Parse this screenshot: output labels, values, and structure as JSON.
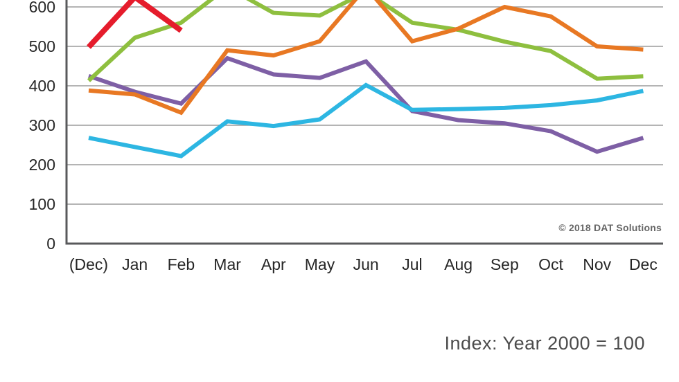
{
  "annotations": {
    "copyright": "© 2018 DAT Solutions",
    "index_note": "Index: Year 2000 = 100"
  },
  "chart_data": {
    "type": "line",
    "title": "",
    "xlabel": "",
    "ylabel": "",
    "categories": [
      "(Dec)",
      "Jan",
      "Feb",
      "Mar",
      "Apr",
      "May",
      "Jun",
      "Jul",
      "Aug",
      "Sep",
      "Oct",
      "Nov",
      "Dec"
    ],
    "yticks": [
      0,
      100,
      200,
      300,
      400,
      500,
      600
    ],
    "ylim": [
      0,
      620
    ],
    "grid": true,
    "legend": "none (cropped out of frame)",
    "top_cropped": true,
    "series": [
      {
        "name": "purple-line",
        "color": "#7e5fa5",
        "stroke_width": 6,
        "values": [
          425,
          385,
          355,
          470,
          429,
          420,
          462,
          336,
          313,
          305,
          285,
          233,
          268
        ]
      },
      {
        "name": "green-line",
        "color": "#8ebf3f",
        "stroke_width": 6,
        "values": [
          413,
          522,
          560,
          650,
          585,
          578,
          638,
          560,
          542,
          512,
          488,
          418,
          424
        ]
      },
      {
        "name": "orange-line",
        "color": "#e87823",
        "stroke_width": 6,
        "values": [
          388,
          378,
          332,
          490,
          477,
          513,
          650,
          513,
          545,
          600,
          576,
          500,
          492
        ]
      },
      {
        "name": "cyan-line",
        "color": "#2db6e2",
        "stroke_width": 6,
        "values": [
          268,
          245,
          222,
          310,
          298,
          315,
          402,
          339,
          341,
          344,
          351,
          363,
          387
        ]
      },
      {
        "name": "red-line-partial",
        "color": "#e51c2c",
        "stroke_width": 8,
        "values": [
          498,
          625,
          540,
          null,
          null,
          null,
          null,
          null,
          null,
          null,
          null,
          null,
          null
        ]
      }
    ],
    "axis_colors": {
      "gridline": "#9c9c9c",
      "axis_line": "#58595b",
      "tick_label": "#262626"
    }
  }
}
